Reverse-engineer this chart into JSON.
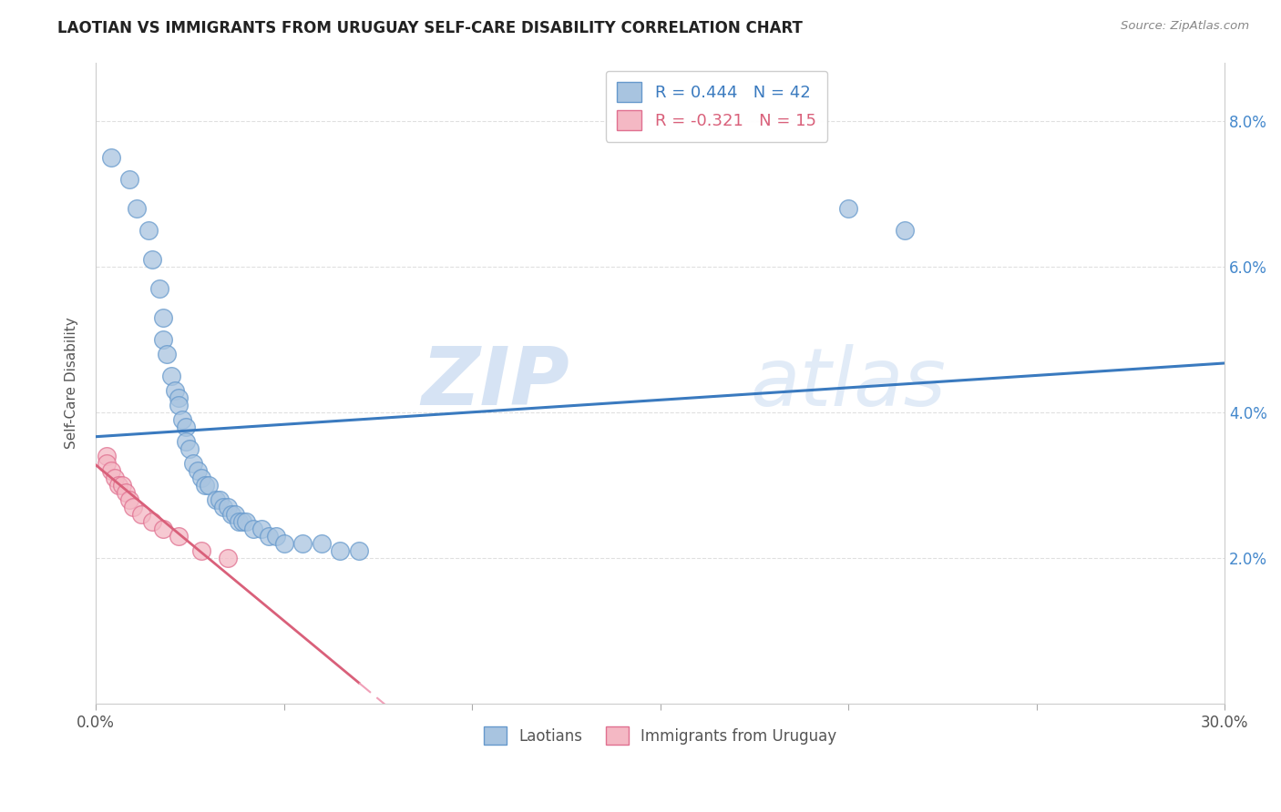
{
  "title": "LAOTIAN VS IMMIGRANTS FROM URUGUAY SELF-CARE DISABILITY CORRELATION CHART",
  "source": "Source: ZipAtlas.com",
  "ylabel": "Self-Care Disability",
  "xlim": [
    0.0,
    0.3
  ],
  "ylim": [
    0.0,
    0.088
  ],
  "xticks": [
    0.0,
    0.05,
    0.1,
    0.15,
    0.2,
    0.25,
    0.3
  ],
  "xticklabels": [
    "0.0%",
    "",
    "",
    "",
    "",
    "",
    "30.0%"
  ],
  "yticks_right": [
    0.02,
    0.04,
    0.06,
    0.08
  ],
  "ytick_labels_right": [
    "2.0%",
    "4.0%",
    "6.0%",
    "8.0%"
  ],
  "laotian_color": "#a8c4e0",
  "laotian_edge_color": "#6699cc",
  "uruguay_color": "#f4b8c4",
  "uruguay_edge_color": "#e07090",
  "laotian_line_color": "#3a7abf",
  "uruguay_solid_color": "#d9607a",
  "uruguay_dash_color": "#f0a0b8",
  "legend_R_laotian": "0.444",
  "legend_N_laotian": "42",
  "legend_R_uruguay": "-0.321",
  "legend_N_uruguay": "15",
  "laotian_x": [
    0.004,
    0.009,
    0.011,
    0.014,
    0.015,
    0.017,
    0.018,
    0.018,
    0.019,
    0.02,
    0.021,
    0.022,
    0.022,
    0.023,
    0.024,
    0.024,
    0.025,
    0.026,
    0.027,
    0.028,
    0.029,
    0.03,
    0.032,
    0.033,
    0.034,
    0.035,
    0.036,
    0.037,
    0.038,
    0.039,
    0.04,
    0.042,
    0.044,
    0.046,
    0.048,
    0.05,
    0.055,
    0.06,
    0.065,
    0.07,
    0.2,
    0.215
  ],
  "laotian_y": [
    0.075,
    0.072,
    0.068,
    0.065,
    0.061,
    0.057,
    0.053,
    0.05,
    0.048,
    0.045,
    0.043,
    0.042,
    0.041,
    0.039,
    0.038,
    0.036,
    0.035,
    0.033,
    0.032,
    0.031,
    0.03,
    0.03,
    0.028,
    0.028,
    0.027,
    0.027,
    0.026,
    0.026,
    0.025,
    0.025,
    0.025,
    0.024,
    0.024,
    0.023,
    0.023,
    0.022,
    0.022,
    0.022,
    0.021,
    0.021,
    0.068,
    0.065
  ],
  "uruguay_x": [
    0.003,
    0.003,
    0.004,
    0.005,
    0.006,
    0.007,
    0.008,
    0.009,
    0.01,
    0.012,
    0.015,
    0.018,
    0.022,
    0.028,
    0.035
  ],
  "uruguay_y": [
    0.034,
    0.033,
    0.032,
    0.031,
    0.03,
    0.03,
    0.029,
    0.028,
    0.027,
    0.026,
    0.025,
    0.024,
    0.023,
    0.021,
    0.02
  ],
  "watermark_zip": "ZIP",
  "watermark_atlas": "atlas",
  "background_color": "#ffffff",
  "grid_color": "#dddddd"
}
